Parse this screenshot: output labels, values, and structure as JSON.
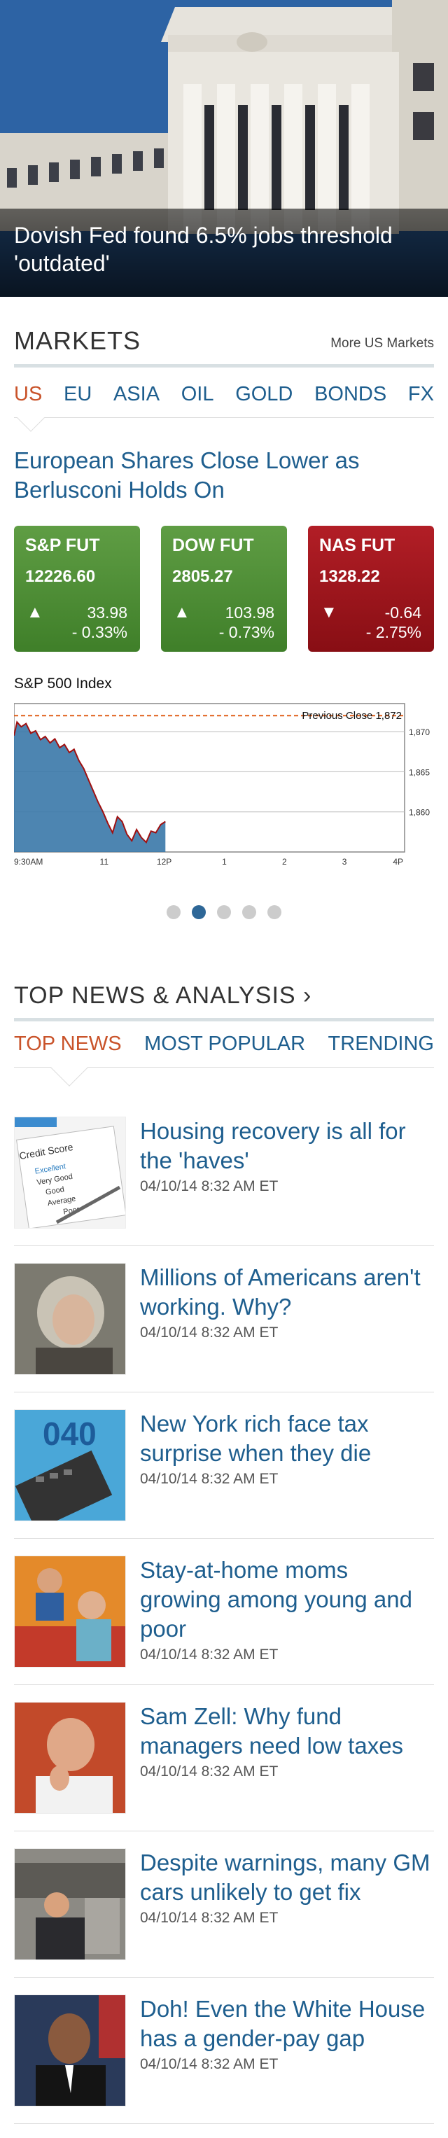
{
  "hero": {
    "caption": "Dovish Fed found 6.5% jobs threshold 'outdated'"
  },
  "markets": {
    "title": "MARKETS",
    "more_link": "More US Markets",
    "tabs": [
      "US",
      "EU",
      "ASIA",
      "OIL",
      "GOLD",
      "BONDS",
      "FX"
    ],
    "active_tab": "US",
    "headline": "European Shares Close Lower as Berlusconi Holds On",
    "cards": [
      {
        "name": "S&P FUT",
        "price": "12226.60",
        "change": "33.98",
        "pct": "- 0.33%",
        "direction": "up"
      },
      {
        "name": "DOW FUT",
        "price": "2805.27",
        "change": "103.98",
        "pct": "- 0.73%",
        "direction": "up"
      },
      {
        "name": "NAS FUT",
        "price": "1328.22",
        "change": "-0.64",
        "pct": "- 2.75%",
        "direction": "down"
      }
    ],
    "colors": {
      "up": "#4a8a32",
      "down": "#9f1820",
      "accent": "#c9532a",
      "link": "#1e5e8e"
    }
  },
  "chart_data": {
    "type": "area",
    "title": "S&P 500 Index",
    "annotation": "Previous Close 1,872",
    "previous_close": 1872,
    "x_tick_labels": [
      "9:30AM",
      "11",
      "12P",
      "1",
      "2",
      "3",
      "4P"
    ],
    "y_tick_labels": [
      "1,870",
      "1,865",
      "1,860"
    ],
    "y_ticks": [
      1870,
      1865,
      1860
    ],
    "ylim": [
      1855,
      1873.5
    ],
    "xlim_hours": [
      9.5,
      16
    ],
    "x_hours": [
      9.5,
      9.55,
      9.62,
      9.7,
      9.78,
      9.86,
      9.94,
      10.02,
      10.1,
      10.18,
      10.26,
      10.34,
      10.42,
      10.5,
      10.58,
      10.66,
      10.74,
      10.82,
      10.9,
      10.98,
      11.06,
      11.14,
      11.22,
      11.3,
      11.38,
      11.46,
      11.54,
      11.62,
      11.7,
      11.78,
      11.86,
      11.94,
      12.02
    ],
    "values": [
      1869.5,
      1871.2,
      1870.6,
      1871.0,
      1869.8,
      1870.1,
      1869.0,
      1869.4,
      1868.6,
      1869.1,
      1868.0,
      1868.4,
      1867.4,
      1867.8,
      1866.4,
      1865.4,
      1864.0,
      1862.6,
      1861.2,
      1860.0,
      1858.6,
      1857.4,
      1859.4,
      1858.8,
      1857.2,
      1856.4,
      1857.8,
      1856.8,
      1856.2,
      1857.6,
      1857.4,
      1858.4,
      1858.8
    ],
    "grid": true,
    "line_color": "#a01010",
    "fill_color": "#3a78a8",
    "reference_line_color": "#e0601a"
  },
  "carousel": {
    "pages": 5,
    "active": 2
  },
  "news": {
    "title": "TOP NEWS & ANALYSIS ›",
    "tabs": [
      "TOP NEWS",
      "MOST POPULAR",
      "TRENDING"
    ],
    "active_tab": "TOP NEWS",
    "items": [
      {
        "title": "Housing recovery is all for the 'haves'",
        "time": "04/10/14 8:32 AM ET",
        "thumb": "credit-score"
      },
      {
        "title": "Millions of Americans aren't working. Why?",
        "time": "04/10/14 8:32 AM ET",
        "thumb": "woman"
      },
      {
        "title": "New York rich face tax surprise when they die",
        "time": "04/10/14 8:32 AM ET",
        "thumb": "tax-form"
      },
      {
        "title": "Stay-at-home moms growing among young and poor",
        "time": "04/10/14 8:32 AM ET",
        "thumb": "moms"
      },
      {
        "title": "Sam Zell: Why fund managers need low taxes",
        "time": "04/10/14 8:32 AM ET",
        "thumb": "sam-zell"
      },
      {
        "title": "Despite warnings, many GM cars unlikely to get fix",
        "time": "04/10/14 8:32 AM ET",
        "thumb": "gm-worker"
      },
      {
        "title": "Doh! Even the White House has a gender-pay gap",
        "time": "04/10/14 8:32 AM ET",
        "thumb": "obama"
      }
    ]
  }
}
